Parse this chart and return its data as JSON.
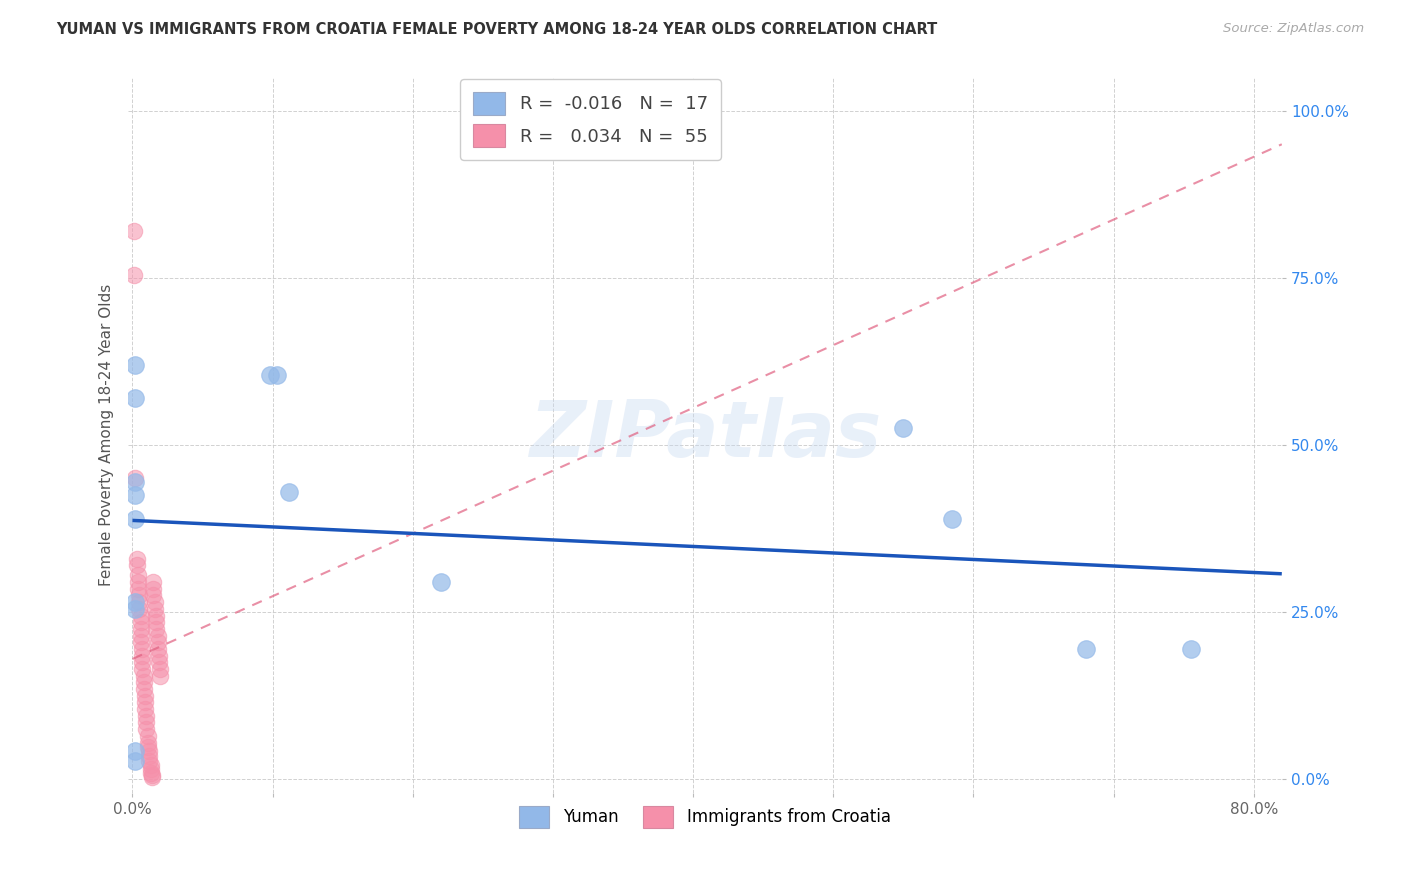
{
  "title": "YUMAN VS IMMIGRANTS FROM CROATIA FEMALE POVERTY AMONG 18-24 YEAR OLDS CORRELATION CHART",
  "source": "Source: ZipAtlas.com",
  "ylabel": "Female Poverty Among 18-24 Year Olds",
  "xlim": [
    -0.003,
    0.82
  ],
  "ylim": [
    -0.02,
    1.05
  ],
  "xtick_pos": [
    0.0,
    0.1,
    0.2,
    0.3,
    0.4,
    0.5,
    0.6,
    0.7,
    0.8
  ],
  "xticklabels": [
    "0.0%",
    "",
    "",
    "",
    "",
    "",
    "",
    "",
    "80.0%"
  ],
  "ytick_pos": [
    0.0,
    0.25,
    0.5,
    0.75,
    1.0
  ],
  "yticklabels": [
    "0.0%",
    "25.0%",
    "50.0%",
    "75.0%",
    "100.0%"
  ],
  "legend_label1": "Yuman",
  "legend_label2": "Immigrants from Croatia",
  "r1": "-0.016",
  "n1": "17",
  "r2": "0.034",
  "n2": "55",
  "color1": "#92B8E8",
  "color2": "#F590AA",
  "regression_color1": "#1A55BB",
  "regression_color2": "#E06080",
  "watermark": "ZIPatlas",
  "blue_x": [
    0.002,
    0.002,
    0.002,
    0.002,
    0.002,
    0.098,
    0.103,
    0.22,
    0.112,
    0.55,
    0.585,
    0.68,
    0.755,
    0.002,
    0.002,
    0.002,
    0.002
  ],
  "blue_y": [
    0.62,
    0.57,
    0.445,
    0.425,
    0.39,
    0.605,
    0.605,
    0.295,
    0.43,
    0.525,
    0.39,
    0.195,
    0.195,
    0.265,
    0.255,
    0.042,
    0.028
  ],
  "pink_x": [
    0.001,
    0.001,
    0.002,
    0.003,
    0.003,
    0.004,
    0.004,
    0.004,
    0.005,
    0.005,
    0.005,
    0.006,
    0.006,
    0.006,
    0.006,
    0.006,
    0.007,
    0.007,
    0.007,
    0.007,
    0.008,
    0.008,
    0.008,
    0.009,
    0.009,
    0.009,
    0.01,
    0.01,
    0.01,
    0.011,
    0.011,
    0.011,
    0.012,
    0.012,
    0.012,
    0.013,
    0.013,
    0.013,
    0.014,
    0.014,
    0.015,
    0.015,
    0.015,
    0.016,
    0.016,
    0.017,
    0.017,
    0.017,
    0.018,
    0.018,
    0.018,
    0.019,
    0.019,
    0.02,
    0.02
  ],
  "pink_y": [
    0.82,
    0.755,
    0.45,
    0.33,
    0.32,
    0.305,
    0.295,
    0.285,
    0.275,
    0.265,
    0.255,
    0.245,
    0.235,
    0.225,
    0.215,
    0.205,
    0.195,
    0.185,
    0.175,
    0.165,
    0.155,
    0.145,
    0.135,
    0.125,
    0.115,
    0.105,
    0.095,
    0.085,
    0.075,
    0.065,
    0.055,
    0.048,
    0.042,
    0.035,
    0.028,
    0.022,
    0.016,
    0.01,
    0.006,
    0.003,
    0.295,
    0.285,
    0.275,
    0.265,
    0.255,
    0.245,
    0.235,
    0.225,
    0.215,
    0.205,
    0.195,
    0.185,
    0.175,
    0.165,
    0.155
  ]
}
